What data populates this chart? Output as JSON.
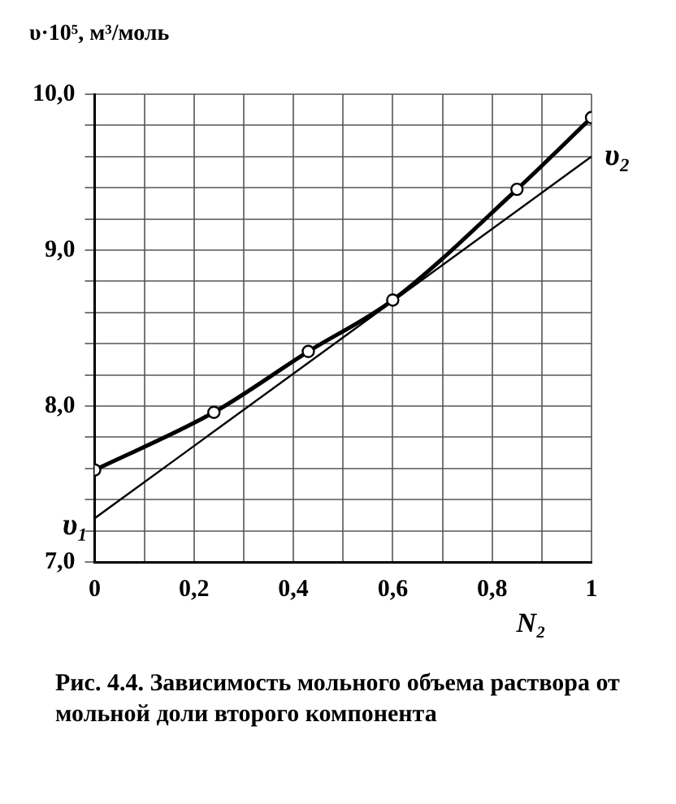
{
  "chart_data": {
    "type": "line",
    "xlabel": "N₂",
    "ylabel": "υ·10⁵, м³/моль",
    "x": [
      0,
      0.24,
      0.43,
      0.6,
      0.85,
      1
    ],
    "series": [
      {
        "color": "#000000",
        "marker": "circle",
        "values": [
          7.59,
          7.96,
          8.35,
          8.68,
          9.39,
          9.85
        ]
      },
      {
        "color": "#000000",
        "marker": "none",
        "x": [
          0,
          1
        ],
        "values": [
          7.28,
          9.6
        ]
      }
    ],
    "xlim": [
      0,
      1
    ],
    "ylim": [
      7,
      10
    ],
    "xticks": [
      0,
      {
        "value": 0.1,
        "label": null
      },
      {
        "value": 0.2,
        "label": "0,2"
      },
      {
        "value": 0.3,
        "label": null
      },
      {
        "value": 0.4,
        "label": "0,4"
      },
      {
        "value": 0.5,
        "label": null
      },
      {
        "value": 0.6,
        "label": "0,6"
      },
      {
        "value": 0.7,
        "label": null
      },
      {
        "value": 0.8,
        "label": "0,8"
      },
      {
        "value": 0.9,
        "label": null
      },
      1
    ],
    "yticks": [
      {
        "value": 7,
        "label": "7,0"
      },
      {
        "value": 7.2,
        "label": null
      },
      {
        "value": 7.4,
        "label": null
      },
      {
        "value": 7.6,
        "label": null
      },
      {
        "value": 7.8,
        "label": null
      },
      {
        "value": 8,
        "label": "8,0"
      },
      {
        "value": 8.2,
        "label": null
      },
      {
        "value": 8.4,
        "label": null
      },
      {
        "value": 8.6,
        "label": null
      },
      {
        "value": 8.8,
        "label": null
      },
      {
        "value": 9,
        "label": "9,0"
      },
      {
        "value": 9.2,
        "label": null
      },
      {
        "value": 9.4,
        "label": null
      },
      {
        "value": 9.6,
        "label": null
      },
      {
        "value": 9.8,
        "label": null
      },
      {
        "value": 10,
        "label": "10,0"
      }
    ],
    "grid": true,
    "line_style": "solid",
    "annotations": [
      {
        "text": "υ₁",
        "x": 0,
        "y": 7.28
      },
      {
        "text": "υ₂",
        "x": 1,
        "y": 9.6
      },
      "Рис. 4.4. Зависимость мольного объема раствора от мольной доли второго компонента"
    ]
  }
}
